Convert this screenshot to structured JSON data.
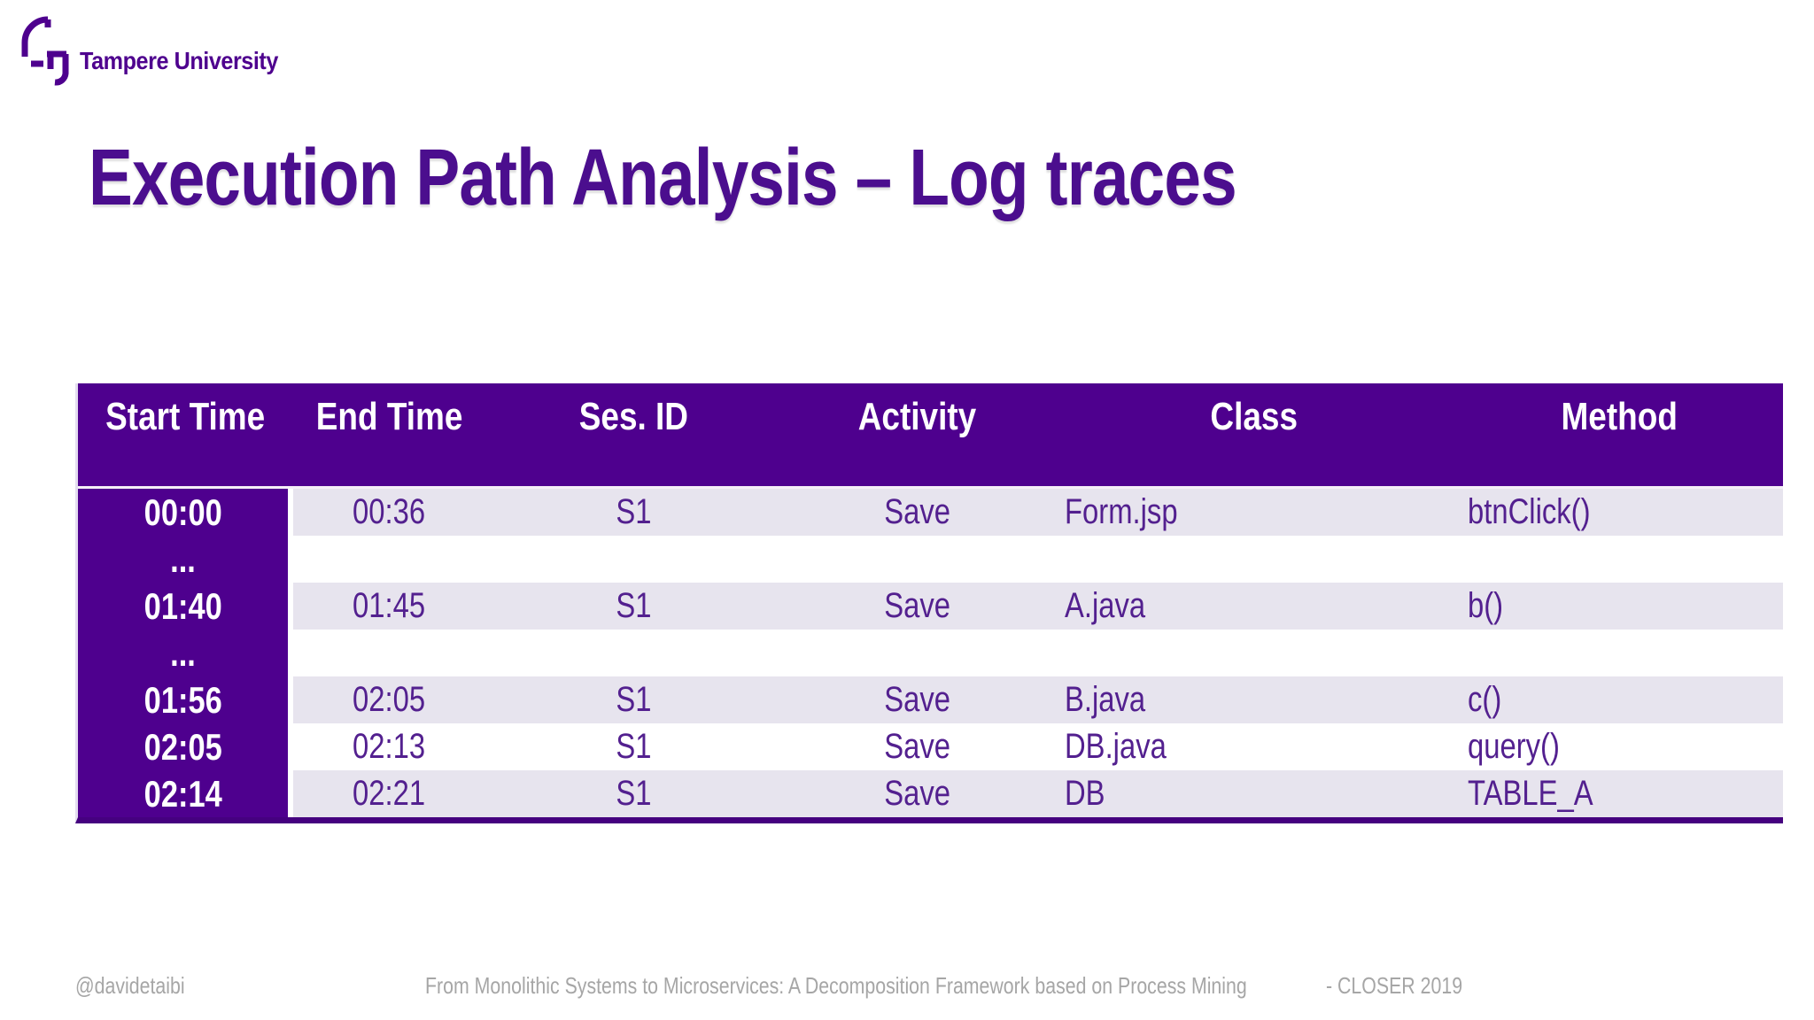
{
  "branding": {
    "university_name": "Tampere University"
  },
  "title": "Execution Path Analysis – Log traces",
  "table": {
    "columns": [
      "Start Time",
      "End Time",
      "Ses.\nID",
      "Activity",
      "Class",
      "Method"
    ],
    "rows": [
      [
        "00:00",
        "00:36",
        "S1",
        "Save",
        "Form.jsp",
        "btnClick()"
      ],
      [
        "...",
        "",
        "",
        "",
        "",
        ""
      ],
      [
        "01:40",
        "01:45",
        "S1",
        "Save",
        "A.java",
        "b()"
      ],
      [
        "...",
        "",
        "",
        "",
        "",
        ""
      ],
      [
        "01:56",
        "02:05",
        "S1",
        "Save",
        "B.java",
        "c()"
      ],
      [
        "02:05",
        "02:13",
        "S1",
        "Save",
        "DB.java",
        "query()"
      ],
      [
        "02:14",
        "02:21",
        "S1",
        "Save",
        "DB",
        "TABLE_A"
      ]
    ]
  },
  "footer": {
    "handle": "@davidetaibi",
    "reference": "From Monolithic Systems to Microservices: A Decomposition Framework based on Process Mining",
    "conference": "- CLOSER 2019"
  },
  "colors": {
    "brand_purple": "#4E008E",
    "row_alt_lavender": "#E7E4EE",
    "body_text_purple": "#53208F",
    "table_bottom_border": "#45017F",
    "footer_gray": "#A6A6A6"
  }
}
